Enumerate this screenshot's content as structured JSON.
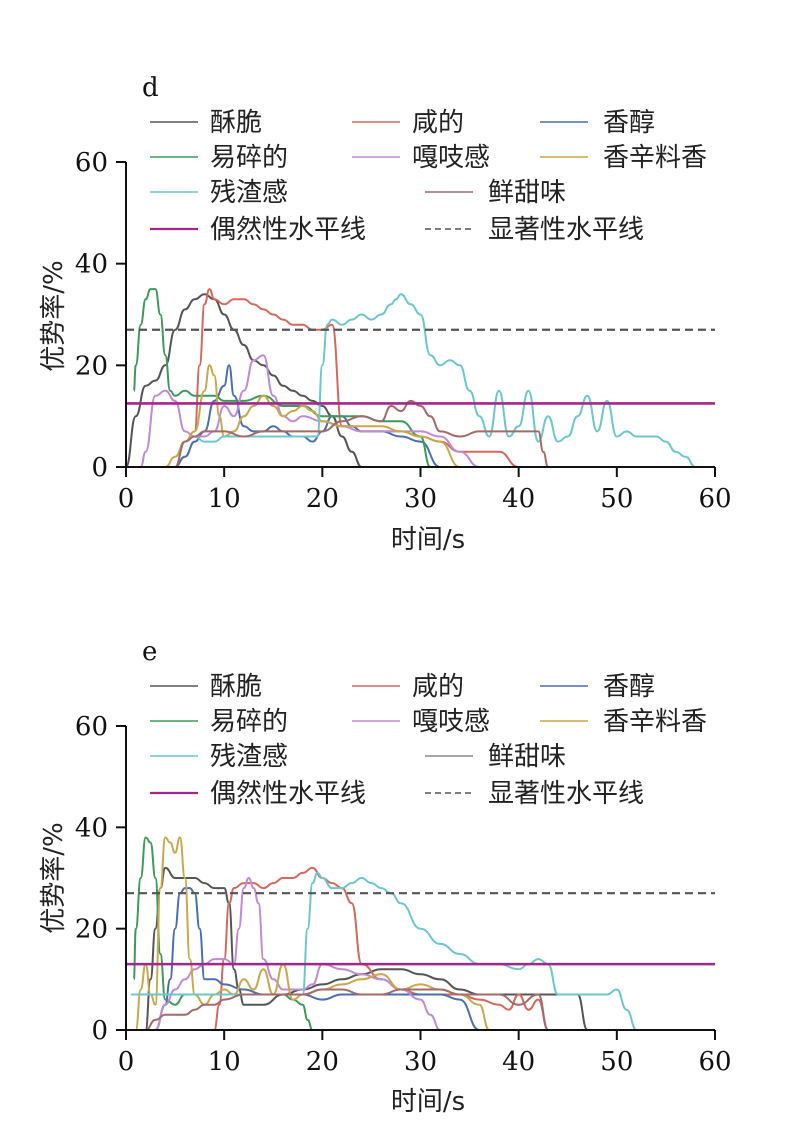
{
  "chart_data": [
    {
      "type": "line",
      "panel_label": "d",
      "xlabel": "时间/s",
      "ylabel": "优势率/%",
      "xlim": [
        0,
        60
      ],
      "ylim": [
        0,
        60
      ],
      "xticks": [
        0,
        10,
        20,
        30,
        40,
        50,
        60
      ],
      "yticks": [
        0,
        20,
        40,
        60
      ],
      "reference_lines": [
        {
          "name": "偶然性水平线",
          "y": 12.5,
          "color": "#a3268c",
          "style": "solid"
        },
        {
          "name": "显著性水平线",
          "y": 27,
          "color": "#555555",
          "style": "dashed"
        }
      ],
      "series": [
        {
          "name": "酥脆",
          "color": "#555555",
          "x": [
            0,
            1,
            2,
            3,
            4,
            5,
            6,
            7,
            8,
            9,
            10,
            11,
            12,
            13,
            14,
            15,
            16,
            17,
            18,
            19,
            20,
            21,
            22,
            23,
            24
          ],
          "y": [
            0,
            10,
            16,
            17,
            20,
            27,
            31,
            33,
            34,
            33,
            30,
            27,
            24,
            21,
            20,
            18,
            16,
            15,
            14,
            13,
            12,
            10,
            6,
            3,
            0
          ]
        },
        {
          "name": "咸的",
          "color": "#d5685c",
          "x": [
            7,
            7.5,
            8,
            8.5,
            9,
            10,
            11,
            12,
            13,
            14,
            15,
            16,
            17,
            18,
            19,
            20,
            21,
            22,
            23,
            24,
            26,
            28,
            30,
            32,
            34,
            36,
            38,
            40
          ],
          "y": [
            7,
            20,
            32,
            35,
            33,
            32,
            33,
            33,
            32,
            31,
            30,
            29,
            28,
            28,
            27,
            27,
            28,
            8,
            8,
            7,
            7,
            7,
            6,
            5,
            3,
            3,
            3,
            0
          ]
        },
        {
          "name": "香醇",
          "color": "#4a6fb0",
          "x": [
            5,
            6,
            7,
            8,
            9,
            10,
            10.5,
            11,
            12,
            13,
            14,
            15,
            16,
            17,
            18,
            19,
            20,
            21,
            22,
            23,
            24,
            26,
            28,
            30,
            32
          ],
          "y": [
            0,
            2,
            5,
            7,
            13,
            16,
            20,
            14,
            8,
            7,
            7,
            8,
            7,
            6,
            6,
            5,
            7,
            10,
            10,
            8,
            7,
            7,
            6,
            5,
            0
          ]
        },
        {
          "name": "易碎的",
          "color": "#3d9a5a",
          "x": [
            0.8,
            1,
            1.5,
            2,
            2.5,
            3,
            3.5,
            4,
            4.5,
            5,
            6,
            7,
            8,
            9,
            10,
            12,
            14,
            16,
            18,
            20,
            22,
            24,
            26,
            28,
            30,
            31
          ],
          "y": [
            15,
            20,
            28,
            33,
            35,
            35,
            30,
            22,
            15,
            14,
            15,
            14,
            14,
            14,
            13,
            13,
            14,
            12,
            12,
            10,
            10,
            10,
            9,
            9,
            6,
            0
          ]
        },
        {
          "name": "嘎吱感",
          "color": "#c08ad6",
          "x": [
            1.5,
            2,
            3,
            4,
            5,
            6,
            7,
            8,
            9,
            10,
            11,
            12,
            13,
            14,
            15,
            16,
            17,
            18,
            20,
            22,
            24,
            26,
            28,
            30,
            32,
            34,
            36
          ],
          "y": [
            0,
            3,
            14,
            15,
            13,
            7,
            6,
            6,
            7,
            12,
            10,
            15,
            21,
            22,
            14,
            10,
            9,
            10,
            9,
            8,
            7,
            7,
            7,
            7,
            6,
            3,
            0
          ]
        },
        {
          "name": "香辛料香",
          "color": "#c8a84a",
          "x": [
            4,
            5,
            6,
            7,
            8,
            8.5,
            9,
            9.5,
            10,
            11,
            12,
            13,
            14,
            15,
            16,
            17,
            18,
            19,
            20,
            22,
            24,
            26,
            28,
            30,
            32,
            34
          ],
          "y": [
            0,
            2,
            5,
            7,
            15,
            20,
            18,
            10,
            6,
            7,
            10,
            12,
            14,
            12,
            10,
            11,
            12,
            11,
            9,
            8,
            8,
            8,
            7,
            6,
            5,
            0
          ]
        },
        {
          "name": "残渣感",
          "color": "#6cc6cc",
          "x": [
            5,
            6,
            7,
            8,
            9,
            10,
            12,
            14,
            16,
            18,
            19.5,
            20,
            20.5,
            21,
            22,
            23,
            24,
            25,
            26,
            27,
            27.5,
            28,
            29,
            30,
            31,
            32,
            33,
            34,
            35,
            36,
            37,
            38,
            39,
            40,
            41,
            42,
            43,
            44,
            45,
            46,
            47,
            48,
            49,
            50,
            51,
            52,
            53,
            54,
            55,
            56,
            57,
            58
          ],
          "y": [
            0,
            5,
            6,
            5,
            5,
            6,
            6,
            6,
            6,
            6,
            6,
            20,
            28,
            29,
            28,
            29,
            30,
            29,
            30,
            32,
            33,
            34,
            32,
            30,
            22,
            20,
            21,
            20,
            15,
            10,
            6,
            15,
            6,
            8,
            15,
            5,
            10,
            5,
            6,
            10,
            14,
            7,
            13,
            6,
            7,
            6,
            6,
            6,
            5,
            3,
            2,
            0
          ]
        },
        {
          "name": "鲜甜味",
          "color": "#a46a6a",
          "x": [
            5,
            6,
            7,
            8,
            9,
            10,
            12,
            14,
            16,
            18,
            20,
            22,
            24,
            26,
            27,
            28,
            29,
            30,
            31,
            32,
            34,
            36,
            38,
            40,
            41,
            42,
            42.5,
            43
          ],
          "y": [
            0,
            5,
            6,
            7,
            7,
            7,
            6,
            7,
            7,
            7,
            7,
            9,
            10,
            9,
            12,
            11,
            13,
            12,
            10,
            7,
            6,
            7,
            7,
            7,
            7,
            7,
            3,
            0
          ]
        }
      ]
    },
    {
      "type": "line",
      "panel_label": "e",
      "xlabel": "时间/s",
      "ylabel": "优势率/%",
      "xlim": [
        0,
        60
      ],
      "ylim": [
        0,
        60
      ],
      "xticks": [
        0,
        10,
        20,
        30,
        40,
        50,
        60
      ],
      "yticks": [
        0,
        20,
        40,
        60
      ],
      "reference_lines": [
        {
          "name": "偶然性水平线",
          "y": 13,
          "color": "#a3268c",
          "style": "solid"
        },
        {
          "name": "显著性水平线",
          "y": 27,
          "color": "#555555",
          "style": "dashed"
        }
      ],
      "series": [
        {
          "name": "酥脆",
          "color": "#555555",
          "x": [
            2,
            2.5,
            3,
            3.5,
            4,
            5,
            6,
            7,
            8,
            9,
            10,
            10.5,
            11,
            11.5,
            12,
            13,
            14,
            16,
            18,
            20,
            22,
            24,
            26,
            28,
            30,
            32,
            34,
            36,
            38,
            40,
            42,
            44,
            45,
            46,
            47
          ],
          "y": [
            0,
            10,
            20,
            28,
            32,
            30,
            30,
            30,
            29,
            28,
            28,
            25,
            12,
            8,
            5,
            5,
            5,
            7,
            8,
            9,
            10,
            11,
            12,
            12,
            11,
            10,
            8,
            7,
            7,
            7,
            7,
            7,
            7,
            7,
            0
          ]
        },
        {
          "name": "咸的",
          "color": "#d5685c",
          "x": [
            9,
            9.5,
            10,
            10.5,
            11,
            12,
            13,
            14,
            15,
            16,
            17,
            18,
            19,
            20,
            21,
            22,
            23,
            24,
            26,
            28,
            30,
            32,
            34,
            36,
            38,
            39,
            40,
            41,
            42,
            43
          ],
          "y": [
            0,
            5,
            14,
            25,
            28,
            29,
            29,
            28,
            29,
            30,
            30,
            31,
            32,
            30,
            29,
            28,
            25,
            13,
            10,
            8,
            7,
            7,
            7,
            6,
            5,
            4,
            7,
            4,
            6,
            0
          ]
        },
        {
          "name": "香醇",
          "color": "#4a6fb0",
          "x": [
            3,
            4,
            4.5,
            5,
            5.5,
            6,
            6.5,
            7,
            7.5,
            8,
            9,
            10,
            12,
            14,
            16,
            18,
            20,
            22,
            24,
            26,
            28,
            30,
            32,
            34,
            36
          ],
          "y": [
            0,
            5,
            10,
            20,
            27,
            28,
            28,
            27,
            20,
            10,
            10,
            9,
            8,
            7,
            7,
            7,
            6,
            7,
            7,
            7,
            7,
            7,
            7,
            6,
            0
          ]
        },
        {
          "name": "易碎的",
          "color": "#3d9a5a",
          "x": [
            0.8,
            1,
            1.5,
            2,
            2.5,
            3,
            3.5,
            4,
            5,
            6,
            8,
            10,
            12,
            14,
            16,
            17,
            18,
            18.5,
            19
          ],
          "y": [
            10,
            20,
            30,
            38,
            37,
            30,
            15,
            6,
            5,
            7,
            7,
            7,
            7,
            7,
            7,
            6,
            5,
            2,
            0
          ]
        },
        {
          "name": "嘎吱感",
          "color": "#c08ad6",
          "x": [
            3,
            4,
            5,
            6,
            7,
            8,
            9,
            10,
            11,
            11.5,
            12,
            12.5,
            13,
            13.5,
            14,
            15,
            16,
            17,
            18,
            19,
            20,
            22,
            24,
            26,
            28,
            30,
            31,
            32
          ],
          "y": [
            0,
            5,
            8,
            10,
            12,
            13,
            14,
            14,
            13,
            20,
            28,
            30,
            28,
            25,
            14,
            10,
            8,
            8,
            8,
            9,
            13,
            12,
            11,
            10,
            8,
            6,
            3,
            0
          ]
        },
        {
          "name": "香辛料香",
          "color": "#c8a84a",
          "x": [
            1,
            1.5,
            2,
            2.5,
            3,
            3.5,
            4,
            4.5,
            5,
            5.5,
            6,
            6.5,
            7,
            8,
            9,
            10,
            11,
            12,
            13,
            14,
            15,
            16,
            17,
            18,
            20,
            22,
            24,
            26,
            28,
            30,
            32,
            34,
            36,
            37
          ],
          "y": [
            0,
            8,
            13,
            7,
            5,
            28,
            38,
            37,
            35,
            38,
            30,
            14,
            7,
            5,
            7,
            8,
            7,
            10,
            8,
            12,
            7,
            13,
            6,
            7,
            8,
            9,
            10,
            11,
            8,
            9,
            8,
            7,
            5,
            0
          ]
        },
        {
          "name": "残渣感",
          "color": "#6cc6cc",
          "x": [
            0.5,
            2,
            4,
            6,
            8,
            10,
            12,
            14,
            16,
            17,
            18,
            18.5,
            19,
            19.5,
            20,
            21,
            22,
            23,
            24,
            25,
            26,
            27,
            28,
            30,
            32,
            34,
            36,
            38,
            40,
            41,
            42,
            43,
            44,
            45,
            46,
            47,
            48,
            49,
            50,
            51,
            52
          ],
          "y": [
            7,
            7,
            7,
            7,
            7,
            7,
            7,
            7,
            7,
            7,
            7,
            20,
            29,
            31,
            30,
            28,
            28,
            29,
            30,
            29,
            28,
            27,
            25,
            20,
            17,
            15,
            13,
            13,
            12,
            13,
            14,
            13,
            7,
            7,
            7,
            7,
            7,
            7,
            8,
            4,
            0
          ]
        },
        {
          "name": "鲜甜味",
          "color": "#a46a6a",
          "x": [
            2,
            3,
            4,
            5,
            6,
            7,
            8,
            9,
            10,
            12,
            14,
            16,
            18,
            20,
            22,
            24,
            26,
            28,
            30,
            32,
            34,
            36,
            38,
            40,
            42,
            43
          ],
          "y": [
            0,
            2,
            3,
            3,
            3,
            4,
            5,
            5,
            6,
            7,
            7,
            7,
            7,
            8,
            8,
            7,
            7,
            8,
            8,
            8,
            7,
            7,
            7,
            5,
            7,
            0
          ]
        }
      ]
    }
  ],
  "legend": {
    "labels": {
      "crisp": "酥脆",
      "salty": "咸的",
      "mellow": "香醇",
      "fragile": "易碎的",
      "crunchy": "嘎吱感",
      "spice": "香辛料香",
      "residue": "残渣感",
      "sweet": "鲜甜味",
      "chance": "偶然性水平线",
      "significance": "显著性水平线"
    }
  }
}
